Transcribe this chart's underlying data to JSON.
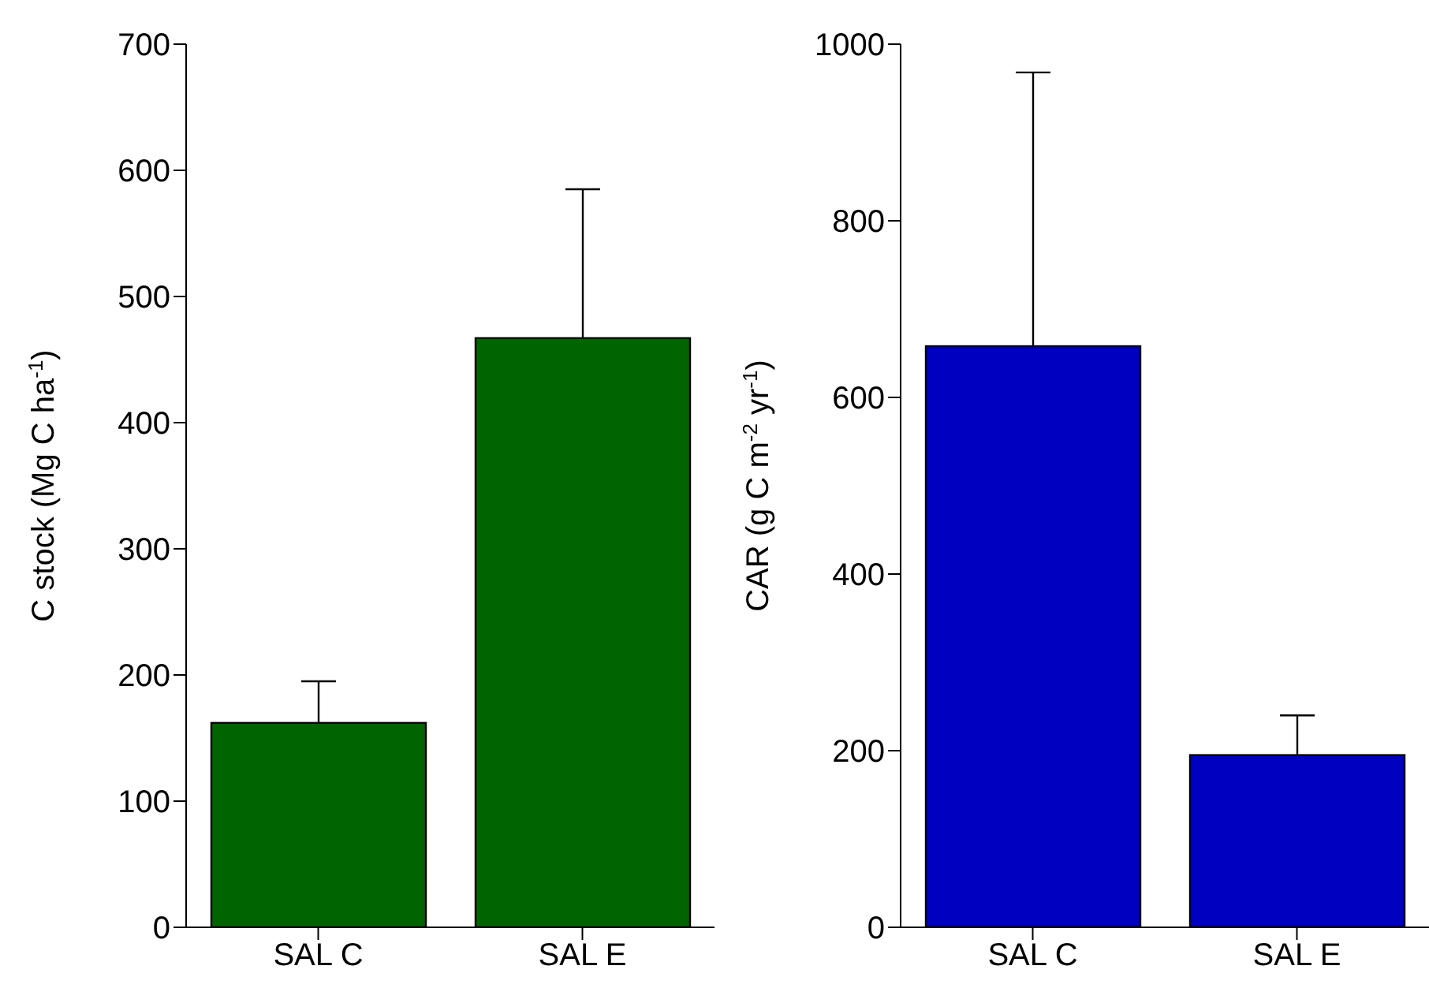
{
  "chart_data": [
    {
      "type": "bar",
      "categories": [
        "SAL C",
        "SAL E"
      ],
      "values": [
        162,
        467
      ],
      "errors": [
        [
          162,
          195
        ],
        [
          467,
          585
        ]
      ],
      "color": "#006400",
      "ylabel": "C stock (Mg C ha$^{-1}$)",
      "ylim": [
        0,
        700
      ],
      "yticks": [
        0,
        100,
        200,
        300,
        400,
        500,
        600,
        700
      ],
      "grid": false,
      "legend": false
    },
    {
      "type": "bar",
      "categories": [
        "SAL C",
        "SAL E"
      ],
      "values": [
        658,
        195
      ],
      "errors": [
        [
          658,
          968
        ],
        [
          195,
          240
        ]
      ],
      "color": "#0000c0",
      "ylabel": "CAR (g C m$^{-2}$ yr$^{-1}$)",
      "ylim": [
        0,
        1000
      ],
      "yticks": [
        0,
        200,
        400,
        600,
        800,
        1000
      ],
      "grid": false,
      "legend": false
    }
  ]
}
